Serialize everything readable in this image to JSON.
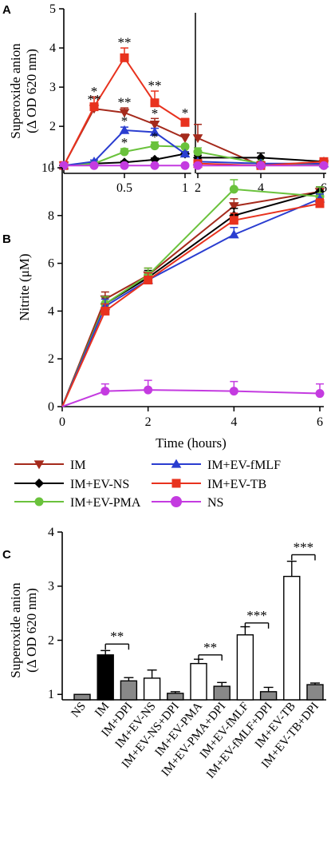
{
  "chart_data": [
    {
      "panel": "A",
      "type": "line",
      "ylabel_line1": "Superoxide anion",
      "ylabel_line2": "(Δ OD 620 nm)",
      "ylim": [
        0.8,
        5
      ],
      "yticks": [
        "1",
        "2",
        "3",
        "4",
        "5"
      ],
      "xticks_left": [
        "0.5",
        "1"
      ],
      "xticks_right": [
        "2",
        "4",
        "6"
      ],
      "axis_break": true,
      "series": [
        {
          "name": "IM",
          "color": "#a52a1c",
          "marker": "triangle-down",
          "x": [
            0,
            0.25,
            0.5,
            0.75,
            1,
            2,
            4,
            6
          ],
          "y": [
            1.0,
            2.45,
            2.35,
            2.05,
            1.7,
            1.7,
            1.0,
            1.05
          ],
          "err": [
            0,
            0.1,
            0.12,
            0.15,
            0.1,
            0.35,
            0.05,
            0.05
          ]
        },
        {
          "name": "IM+EV-NS",
          "color": "#000000",
          "marker": "diamond",
          "x": [
            0,
            0.25,
            0.5,
            0.75,
            1,
            2,
            4,
            6
          ],
          "y": [
            1.0,
            1.05,
            1.08,
            1.15,
            1.3,
            1.2,
            1.2,
            1.1
          ],
          "err": [
            0,
            0.03,
            0.03,
            0.04,
            0.05,
            0.06,
            0.12,
            0.05
          ]
        },
        {
          "name": "IM+EV-PMA",
          "color": "#6ac23c",
          "marker": "circle",
          "x": [
            0,
            0.25,
            0.5,
            0.75,
            1,
            2,
            4,
            6
          ],
          "y": [
            1.0,
            1.05,
            1.35,
            1.5,
            1.48,
            1.35,
            1.05,
            1.0
          ],
          "err": [
            0,
            0.03,
            0.08,
            0.1,
            0.05,
            0.1,
            0.05,
            0.05
          ]
        },
        {
          "name": "IM+EV-fMLF",
          "color": "#2a3dd0",
          "marker": "triangle-up",
          "x": [
            0,
            0.25,
            0.5,
            0.75,
            1,
            2,
            4,
            6
          ],
          "y": [
            1.0,
            1.1,
            1.9,
            1.85,
            1.3,
            1.1,
            1.05,
            1.05
          ],
          "err": [
            0,
            0.04,
            0.08,
            0.1,
            0.05,
            0.05,
            0.05,
            0.05
          ]
        },
        {
          "name": "IM+EV-TB",
          "color": "#e8321e",
          "marker": "square",
          "x": [
            0,
            0.25,
            0.5,
            0.75,
            1,
            2,
            4,
            6
          ],
          "y": [
            1.0,
            2.5,
            3.75,
            2.6,
            2.1,
            1.05,
            1.0,
            1.1
          ],
          "err": [
            0,
            0.25,
            0.25,
            0.3,
            0.1,
            0.05,
            0.05,
            0.05
          ]
        },
        {
          "name": "NS",
          "color": "#c43be0",
          "marker": "circle",
          "x": [
            0,
            0.25,
            0.5,
            0.75,
            1,
            2,
            4,
            6
          ],
          "y": [
            1.0,
            1.0,
            1.0,
            1.0,
            1.0,
            1.0,
            1.0,
            1.0
          ],
          "err": [
            0,
            0,
            0,
            0,
            0,
            0,
            0,
            0
          ]
        }
      ],
      "annotations": [
        {
          "text": "*",
          "x": 0.25,
          "y": 2.78
        },
        {
          "text": "**",
          "x": 0.25,
          "y": 2.57
        },
        {
          "text": "**",
          "x": 0.5,
          "y": 4.03
        },
        {
          "text": "**",
          "x": 0.5,
          "y": 2.5
        },
        {
          "text": "*",
          "x": 0.5,
          "y": 2.02
        },
        {
          "text": "*",
          "x": 0.5,
          "y": 1.47
        },
        {
          "text": "**",
          "x": 0.75,
          "y": 2.93
        },
        {
          "text": "*",
          "x": 0.75,
          "y": 2.22
        },
        {
          "text": "*",
          "x": 0.75,
          "y": 1.62
        },
        {
          "text": "*",
          "x": 1.0,
          "y": 2.23
        }
      ]
    },
    {
      "panel": "B",
      "type": "line",
      "xlabel": "Time (hours)",
      "ylabel": "Nitrite (μM)",
      "xlim": [
        0,
        6
      ],
      "ylim": [
        0,
        10
      ],
      "xticks": [
        "0",
        "2",
        "4",
        "6"
      ],
      "yticks": [
        "0",
        "2",
        "4",
        "6",
        "8",
        "10"
      ],
      "series": [
        {
          "name": "IM",
          "x": [
            0,
            1,
            2,
            4,
            6
          ],
          "y": [
            0,
            4.5,
            5.5,
            8.4,
            9.0
          ],
          "err": [
            0,
            0.3,
            0.3,
            0.3,
            0.2
          ]
        },
        {
          "name": "IM+EV-NS",
          "x": [
            0,
            1,
            2,
            4,
            6
          ],
          "y": [
            0,
            4.3,
            5.4,
            8.0,
            9.0
          ],
          "err": [
            0,
            0.3,
            0.3,
            0.3,
            0.2
          ]
        },
        {
          "name": "IM+EV-PMA",
          "x": [
            0,
            1,
            2,
            4,
            6
          ],
          "y": [
            0,
            4.3,
            5.5,
            9.1,
            8.8
          ],
          "err": [
            0,
            0.3,
            0.3,
            0.4,
            0.4
          ]
        },
        {
          "name": "IM+EV-fMLF",
          "x": [
            0,
            1,
            2,
            4,
            6
          ],
          "y": [
            0,
            4.2,
            5.3,
            7.2,
            8.7
          ],
          "err": [
            0,
            0.3,
            0.3,
            0.3,
            0.2
          ]
        },
        {
          "name": "IM+EV-TB",
          "x": [
            0,
            1,
            2,
            4,
            6
          ],
          "y": [
            0,
            4.0,
            5.3,
            7.8,
            8.5
          ],
          "err": [
            0,
            0.3,
            0.3,
            0.3,
            0.2
          ]
        },
        {
          "name": "NS",
          "x": [
            0,
            1,
            2,
            4,
            6
          ],
          "y": [
            0,
            0.65,
            0.7,
            0.65,
            0.55
          ],
          "err": [
            0,
            0.3,
            0.4,
            0.4,
            0.4
          ]
        }
      ]
    },
    {
      "panel": "C",
      "type": "bar",
      "ylabel_line1": "Superoxide anion",
      "ylabel_line2": "(Δ OD 620 nm)",
      "ylim": [
        0.9,
        4
      ],
      "yticks": [
        "1",
        "2",
        "3",
        "4"
      ],
      "categories": [
        "NS",
        "IM",
        "IM+DPI",
        "IM+EV-NS",
        "IM+EV-NS+DPI",
        "IM+EV-PMA",
        "IM+EV-PMA+DPI",
        "IM+EV-fMLF",
        "IM+EV-fMLF+DPI",
        "IM+EV-TB",
        "IM+EV-TB+DPI"
      ],
      "values": [
        1.0,
        1.73,
        1.25,
        1.3,
        1.02,
        1.57,
        1.15,
        2.1,
        1.05,
        3.18,
        1.18
      ],
      "errors": [
        0.0,
        0.08,
        0.06,
        0.15,
        0.03,
        0.08,
        0.07,
        0.15,
        0.08,
        0.28,
        0.03
      ],
      "fills": [
        "#888888",
        "#000000",
        "#888888",
        "#ffffff",
        "#888888",
        "#ffffff",
        "#888888",
        "#ffffff",
        "#888888",
        "#ffffff",
        "#888888"
      ],
      "brackets": [
        {
          "from": 1,
          "to": 2,
          "text": "**",
          "y": 1.93
        },
        {
          "from": 5,
          "to": 6,
          "text": "**",
          "y": 1.73
        },
        {
          "from": 7,
          "to": 8,
          "text": "***",
          "y": 2.32
        },
        {
          "from": 9,
          "to": 10,
          "text": "***",
          "y": 3.58
        }
      ]
    }
  ],
  "legend": [
    {
      "label": "IM",
      "color": "#a52a1c",
      "marker": "triangle-down"
    },
    {
      "label": "IM+EV-fMLF",
      "color": "#2a3dd0",
      "marker": "triangle-up"
    },
    {
      "label": "IM+EV-NS",
      "color": "#000000",
      "marker": "diamond"
    },
    {
      "label": "IM+EV-TB",
      "color": "#e8321e",
      "marker": "square"
    },
    {
      "label": "IM+EV-PMA",
      "color": "#6ac23c",
      "marker": "circle"
    },
    {
      "label": "NS",
      "color": "#c43be0",
      "marker": "circle"
    }
  ]
}
